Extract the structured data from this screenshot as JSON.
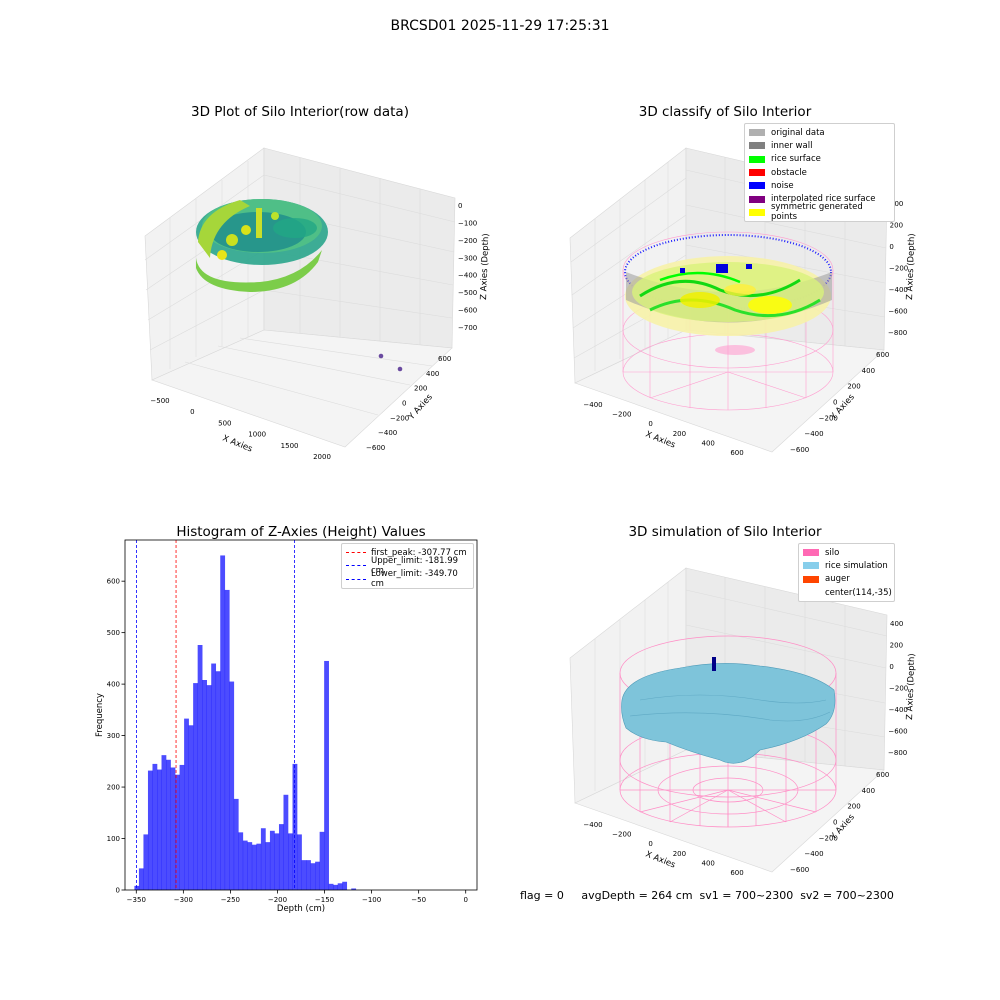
{
  "suptitle": "BRCSD01 2025-11-29 17:25:31",
  "panels": {
    "raw": {
      "title": "3D Plot of Silo Interior(row data)",
      "xlabel": "X Axies",
      "ylabel": "Y Axies",
      "zlabel": "Z Axies (Depth)",
      "xticks": [
        "−500",
        "0",
        "500",
        "1000",
        "1500",
        "2000"
      ],
      "yticks": [
        "600",
        "400",
        "200",
        "0",
        "−200",
        "−400",
        "−600"
      ],
      "zticks": [
        "0",
        "−100",
        "−200",
        "−300",
        "−400",
        "−500",
        "−600",
        "−700"
      ]
    },
    "classify": {
      "title": "3D classify of Silo Interior",
      "xlabel": "X Axies",
      "ylabel": "Y Axies",
      "zlabel": "Z Axies (Depth)",
      "xticks": [
        "−400",
        "−200",
        "0",
        "200",
        "400",
        "600"
      ],
      "yticks": [
        "600",
        "400",
        "200",
        "0",
        "−200",
        "−400",
        "−600"
      ],
      "zticks": [
        "400",
        "200",
        "0",
        "−200",
        "−400",
        "−600",
        "−800"
      ],
      "legend": [
        {
          "label": "original data",
          "color": "#b0b0b0"
        },
        {
          "label": "inner wall",
          "color": "#808080"
        },
        {
          "label": "rice surface",
          "color": "#00ff00"
        },
        {
          "label": "obstacle",
          "color": "#ff0000"
        },
        {
          "label": "noise",
          "color": "#0000ff"
        },
        {
          "label": "interpolated rice surface",
          "color": "#800080"
        },
        {
          "label": "symmetric generated points",
          "color": "#ffff00"
        }
      ]
    },
    "histogram": {
      "title": "Histogram of Z-Axies (Height) Values",
      "xlabel": "Depth (cm)",
      "ylabel": "Frequency",
      "legend": [
        {
          "label": "first_peak: -307.77 cm",
          "color": "#ff0000"
        },
        {
          "label": "Upper_limit: -181.99 cm",
          "color": "#0000ff"
        },
        {
          "label": "Lower_limit: -349.70 cm",
          "color": "#0000ff"
        }
      ]
    },
    "simulation": {
      "title": "3D simulation of Silo Interior",
      "xlabel": "X Axies",
      "ylabel": "Y Axies",
      "zlabel": "Z Axies (Depth)",
      "xticks": [
        "−400",
        "−200",
        "0",
        "200",
        "400",
        "600"
      ],
      "yticks": [
        "600",
        "400",
        "200",
        "0",
        "−200",
        "−400",
        "−600"
      ],
      "zticks": [
        "400",
        "200",
        "0",
        "−200",
        "−400",
        "−600",
        "−800"
      ],
      "legend": [
        {
          "label": "silo",
          "color": "#ff69b4"
        },
        {
          "label": "rice simulation",
          "color": "#87ceeb"
        },
        {
          "label": "auger",
          "color": "#ff4500"
        },
        {
          "label": "center(114,-35)",
          "color": ""
        }
      ]
    }
  },
  "status_text": "flag = 0     avgDepth = 264 cm  sv1 = 700~2300  sv2 = 700~2300",
  "chart_data": [
    {
      "type": "bar",
      "title": "Histogram of Z-Axies (Height) Values",
      "xlabel": "Depth (cm)",
      "ylabel": "Frequency",
      "xlim": [
        -362,
        12
      ],
      "ylim": [
        0,
        680
      ],
      "xticks": [
        -350,
        -300,
        -250,
        -200,
        -150,
        -100,
        -50,
        0
      ],
      "yticks": [
        0,
        100,
        200,
        300,
        400,
        500,
        600
      ],
      "bin_edges_start": -352,
      "bin_width": 4.8,
      "values": [
        8,
        42,
        108,
        232,
        245,
        234,
        262,
        253,
        238,
        224,
        243,
        333,
        320,
        402,
        476,
        408,
        398,
        440,
        425,
        650,
        583,
        405,
        177,
        112,
        96,
        93,
        88,
        90,
        120,
        93,
        115,
        110,
        128,
        185,
        110,
        245,
        108,
        58,
        58,
        52,
        55,
        113,
        445,
        12,
        10,
        13,
        16,
        0,
        3
      ],
      "color": "#0000ff",
      "vlines": [
        {
          "x": -307.77,
          "color": "#ff0000",
          "label": "first_peak: -307.77 cm"
        },
        {
          "x": -181.99,
          "color": "#0000ff",
          "label": "Upper_limit: -181.99 cm"
        },
        {
          "x": -349.7,
          "color": "#0000ff",
          "label": "Lower_limit: -349.70 cm"
        }
      ],
      "legend_position": "top-right",
      "grid": false
    }
  ]
}
